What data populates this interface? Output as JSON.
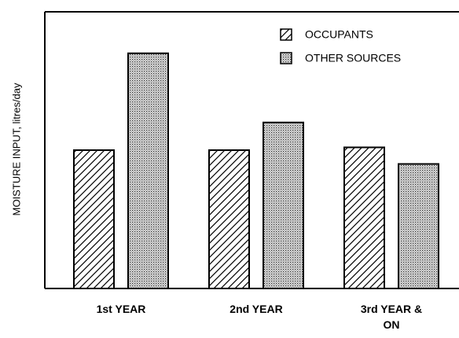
{
  "chart_data": {
    "type": "bar",
    "y_label": "MOISTURE INPUT, litres/day",
    "categories": [
      "1st YEAR",
      "2nd YEAR",
      "3rd YEAR & ON"
    ],
    "series": [
      {
        "name": "OCCUPANTS",
        "color": "#000000",
        "pattern": "hatch",
        "values": [
          5.0,
          5.0,
          5.1
        ]
      },
      {
        "name": "OTHER SOURCES",
        "color": "#000000",
        "pattern": "dots",
        "values": [
          8.5,
          6.0,
          4.5
        ]
      }
    ],
    "ylim": [
      0,
      10
    ],
    "legend": "top-right"
  }
}
